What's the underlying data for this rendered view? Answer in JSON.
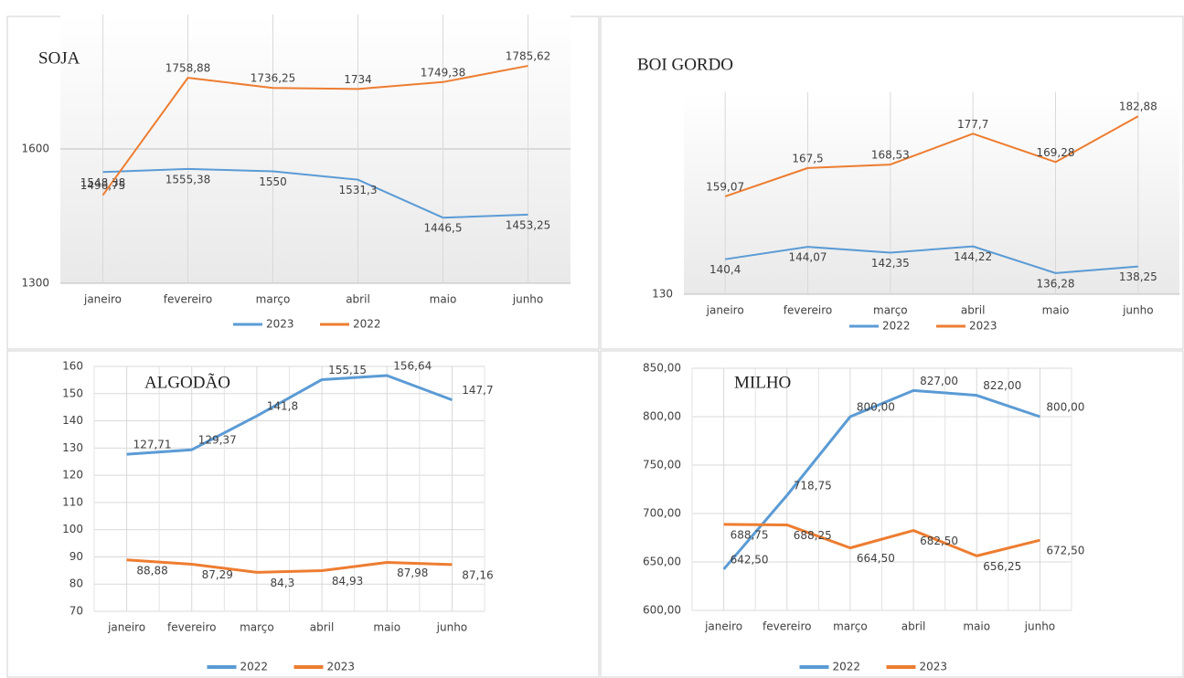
{
  "chart_data": [
    {
      "type": "line",
      "title": "SOJA",
      "categories": [
        "janeiro",
        "fevereiro",
        "março",
        "abril",
        "maio",
        "junho"
      ],
      "series": [
        {
          "name": "2023",
          "color": "#5b9bd5",
          "values": [
            1548.38,
            1555.38,
            1550,
            1531.3,
            1446.5,
            1453.25
          ],
          "value_labels": [
            "1548,38",
            "1555,38",
            "1550",
            "1531,3",
            "1446,5",
            "1453,25"
          ]
        },
        {
          "name": "2022",
          "color": "#ed7d31",
          "values": [
            1496.75,
            1758.88,
            1736.25,
            1734,
            1749.38,
            1785.62
          ],
          "value_labels": [
            "1496,75",
            "1758,88",
            "1736,25",
            "1734",
            "1749,38",
            "1785,62"
          ]
        }
      ],
      "ylim": [
        1300,
        1900
      ],
      "yticks": [
        1300,
        1600
      ],
      "grid": true
    },
    {
      "type": "line",
      "title": "BOI GORDO",
      "categories": [
        "janeiro",
        "fevereiro",
        "março",
        "abril",
        "maio",
        "junho"
      ],
      "series": [
        {
          "name": "2022",
          "color": "#5b9bd5",
          "values": [
            140.4,
            144.07,
            142.35,
            144.22,
            136.28,
            138.25
          ],
          "value_labels": [
            "140,4",
            "144,07",
            "142,35",
            "144,22",
            "136,28",
            "138,25"
          ]
        },
        {
          "name": "2023",
          "color": "#ed7d31",
          "values": [
            159.07,
            167.5,
            168.53,
            177.7,
            169.28,
            182.88
          ],
          "value_labels": [
            "159,07",
            "167,5",
            "168,53",
            "177,7",
            "169,28",
            "182,88"
          ]
        }
      ],
      "ylim": [
        130,
        190
      ],
      "yticks": [
        130
      ],
      "grid": true
    },
    {
      "type": "line",
      "title": "ALGODÃO",
      "categories": [
        "janeiro",
        "fevereiro",
        "março",
        "abril",
        "maio",
        "junho"
      ],
      "series": [
        {
          "name": "2022",
          "color": "#5b9bd5",
          "values": [
            127.71,
            129.37,
            141.8,
            155.15,
            156.64,
            147.7
          ],
          "value_labels": [
            "127,71",
            "129,37",
            "141,8",
            "155,15",
            "156,64",
            "147,7"
          ]
        },
        {
          "name": "2023",
          "color": "#ed7d31",
          "values": [
            88.88,
            87.29,
            84.3,
            84.93,
            87.98,
            87.16
          ],
          "value_labels": [
            "88,88",
            "87,29",
            "84,3",
            "84,93",
            "87,98",
            "87,16"
          ]
        }
      ],
      "ylim": [
        70,
        160
      ],
      "yticks": [
        70,
        80,
        90,
        100,
        110,
        120,
        130,
        140,
        150,
        160
      ],
      "grid": true
    },
    {
      "type": "line",
      "title": "MILHO",
      "categories": [
        "janeiro",
        "fevereiro",
        "março",
        "abril",
        "maio",
        "junho"
      ],
      "series": [
        {
          "name": "2022",
          "color": "#5b9bd5",
          "values": [
            642.5,
            718.75,
            800,
            827,
            822,
            800
          ],
          "value_labels": [
            "642,50",
            "718,75",
            "800,00",
            "827,00",
            "822,00",
            "800,00"
          ]
        },
        {
          "name": "2023",
          "color": "#ed7d31",
          "values": [
            688.75,
            688.25,
            664.5,
            682.5,
            656.25,
            672.5
          ],
          "value_labels": [
            "688,75",
            "688,25",
            "664,50",
            "682,50",
            "656,25",
            "672,50"
          ]
        }
      ],
      "ylim": [
        600,
        850
      ],
      "yticks": [
        {
          "value": 600,
          "label": "600,00"
        },
        {
          "value": 650,
          "label": "650,00"
        },
        {
          "value": 700,
          "label": "700,00"
        },
        {
          "value": 750,
          "label": "750,00"
        },
        {
          "value": 800,
          "label": "800,00"
        },
        {
          "value": 850,
          "label": "850,00"
        }
      ],
      "grid": true
    }
  ]
}
